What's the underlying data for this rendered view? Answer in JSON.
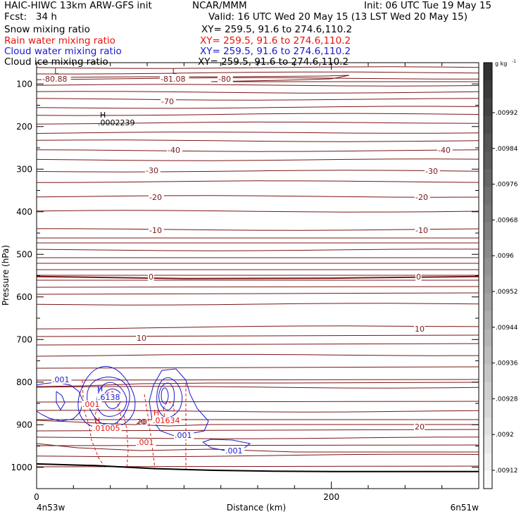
{
  "header": {
    "left1": "HAIC-HIWC 13km ARW-GFS init",
    "org": "NCAR/MMM",
    "init": "Init: 06 UTC Tue 19 May 15",
    "fcst": "Fcst:   34 h",
    "valid": "Valid: 16 UTC Wed 20 May 15 (13 LST Wed 20 May 15)"
  },
  "fields": [
    {
      "name": "Snow mixing ratio",
      "xy": "XY= 259.5, 91.6 to 274.6,110.2",
      "color": "#000000"
    },
    {
      "name": "Rain water mixing ratio",
      "xy": "XY= 259.5, 91.6 to 274.6,110.2",
      "color": "#e8120c"
    },
    {
      "name": "Cloud water mixing ratio",
      "xy": "XY= 259.5, 91.6 to 274.6,110.2",
      "color": "#1a1acc"
    },
    {
      "name": "Cloud ice mixing ratio",
      "xy": "XY= 259.5, 91.6 to 274.6,110.2",
      "color": "#000000"
    }
  ],
  "chart_data": {
    "type": "contour",
    "xlabel": "Distance (km)",
    "ylabel": "Pressure (hPa)",
    "xlim": [
      0,
      300
    ],
    "ylim": [
      1050,
      50
    ],
    "y_scale": "linear-inverted",
    "x_ticks": [
      0,
      200
    ],
    "y_ticks": [
      100,
      200,
      300,
      400,
      500,
      600,
      700,
      800,
      900,
      1000
    ],
    "x_ticklabels": [
      "0",
      "200"
    ],
    "y_ticklabels": [
      "100",
      "200",
      "300",
      "400",
      "500",
      "600",
      "700",
      "800",
      "900",
      "1000"
    ],
    "endpoints": {
      "left": "4n53w",
      "right": "6n51w"
    },
    "temperature_contours": {
      "color": "#7a1515",
      "label_values": [
        "-80.88",
        "-81.08",
        "-80",
        "-70",
        "-40",
        "-40",
        "-30",
        "-30",
        "-20",
        "-20",
        "-10",
        "-10",
        "0",
        "0",
        "10",
        "10",
        "20",
        "20"
      ],
      "extrema": [
        {
          "type": "L",
          "label": "-80.88",
          "x": 12,
          "p": 92
        },
        {
          "type": "L",
          "label": "-81.08",
          "x": 92,
          "p": 92
        }
      ],
      "zero_line": {
        "x": [
          0,
          100,
          200,
          300
        ],
        "p": [
          552,
          557,
          556,
          552
        ]
      }
    },
    "snow_max": {
      "type": "H",
      "label": ".0002239",
      "x": 47,
      "p": 195
    },
    "rain_contours": {
      "color": "#e8120c",
      "labels": [
        ".001",
        ".001",
        ".01005",
        ".01634"
      ],
      "maxima": [
        {
          "type": "H",
          "label": ".01005",
          "x": 45,
          "p": 905
        },
        {
          "type": "H",
          "label": ".01634",
          "x": 90,
          "p": 900
        }
      ]
    },
    "cloud_water_contours": {
      "color": "#1a1acc",
      "labels": [
        ".001",
        ".001",
        ".001",
        ".6138"
      ],
      "maxima": [
        {
          "type": "H",
          "label": ".6138",
          "x": 48,
          "p": 838
        }
      ]
    },
    "surface_line": {
      "x": [
        0,
        40,
        80,
        120,
        160,
        200,
        240,
        280,
        300
      ],
      "p": [
        992,
        996,
        1003,
        1007,
        1009,
        1010,
        1010,
        1010,
        1010
      ]
    },
    "colorbar": {
      "unit": "g kg",
      "unit_exp": "-1",
      "labels": [
        ".00992",
        ".00984",
        ".00976",
        ".00968",
        ".0096",
        ".00952",
        ".00944",
        ".00936",
        ".00928",
        ".0092",
        ".00912"
      ]
    }
  },
  "colors": {
    "temperature": "#7a1515",
    "rain": "#e8120c",
    "cloud_water": "#1a1acc",
    "frame": "#000000"
  }
}
